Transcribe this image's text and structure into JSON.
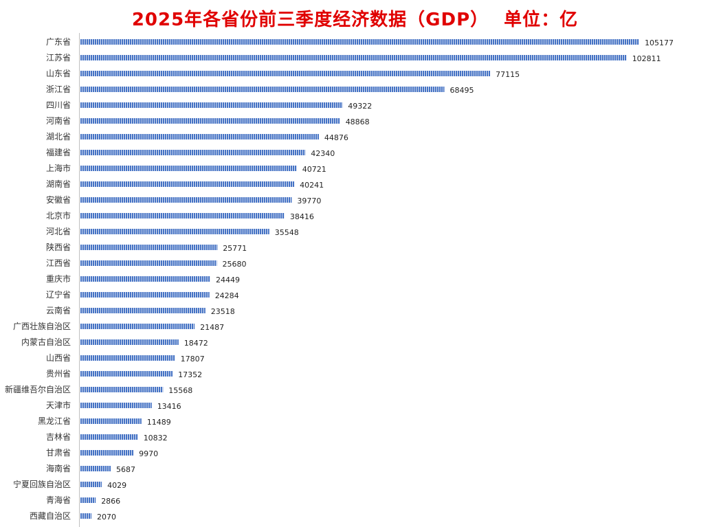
{
  "chart_data": {
    "type": "bar",
    "orientation": "horizontal",
    "title": "2025年各省份前三季度经济数据（GDP）",
    "unit_label": "单位：亿",
    "categories": [
      "广东省",
      "江苏省",
      "山东省",
      "浙江省",
      "四川省",
      "河南省",
      "湖北省",
      "福建省",
      "上海市",
      "湖南省",
      "安徽省",
      "北京市",
      "河北省",
      "陕西省",
      "江西省",
      "重庆市",
      "辽宁省",
      "云南省",
      "广西壮族自治区",
      "内蒙古自治区",
      "山西省",
      "贵州省",
      "新疆维吾尔自治区",
      "天津市",
      "黑龙江省",
      "吉林省",
      "甘肃省",
      "海南省",
      "宁夏回族自治区",
      "青海省",
      "西藏自治区"
    ],
    "values": [
      105177,
      102811,
      77115,
      68495,
      49322,
      48868,
      44876,
      42340,
      40721,
      40241,
      39770,
      38416,
      35548,
      25771,
      25680,
      24449,
      24284,
      23518,
      21487,
      18472,
      17807,
      17352,
      15568,
      13416,
      11489,
      10832,
      9970,
      5687,
      4029,
      2866,
      2070
    ],
    "data_labels": true,
    "grid": false,
    "legend": "none",
    "bar_color": "#4472c4",
    "bar_stripe_color": "#dfe6f4",
    "title_color": "#e00000"
  }
}
